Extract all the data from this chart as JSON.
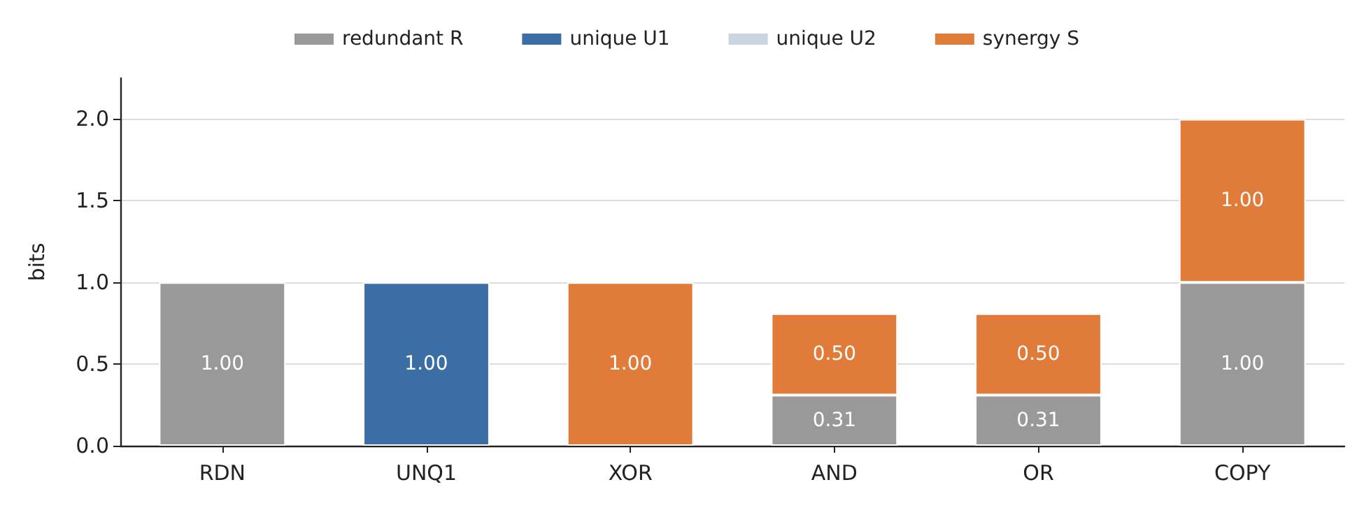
{
  "chart_data": {
    "type": "bar",
    "stacked": true,
    "ylabel": "bits",
    "categories": [
      "RDN",
      "UNQ1",
      "XOR",
      "AND",
      "OR",
      "COPY"
    ],
    "series": [
      {
        "name": "redundant R",
        "color": "#999999",
        "values": [
          1,
          0,
          0,
          0.31,
          0.31,
          1
        ],
        "value_labels": [
          "1.00",
          null,
          null,
          "0.31",
          "0.31",
          "1.00"
        ]
      },
      {
        "name": "unique U1",
        "color": "#3a6ea5",
        "values": [
          0,
          1,
          0,
          0,
          0,
          0
        ],
        "value_labels": [
          null,
          "1.00",
          null,
          null,
          null,
          null
        ]
      },
      {
        "name": "unique U2",
        "color": "#c8d4e0",
        "values": [
          0,
          0,
          0,
          0,
          0,
          0
        ],
        "value_labels": [
          null,
          null,
          null,
          null,
          null,
          null
        ]
      },
      {
        "name": "synergy S",
        "color": "#e07b39",
        "values": [
          0,
          0,
          1,
          0.5,
          0.5,
          1
        ],
        "value_labels": [
          null,
          null,
          "1.00",
          "0.50",
          "0.50",
          "1.00"
        ]
      }
    ],
    "ylim": [
      0,
      2.25
    ],
    "yticks": [
      {
        "value": 0,
        "label": "0.0"
      },
      {
        "value": 0.5,
        "label": "0.5"
      },
      {
        "value": 1,
        "label": "1.0"
      },
      {
        "value": 1.5,
        "label": "1.5"
      },
      {
        "value": 2,
        "label": "2.0"
      }
    ],
    "grid": "y",
    "legend": "top"
  }
}
